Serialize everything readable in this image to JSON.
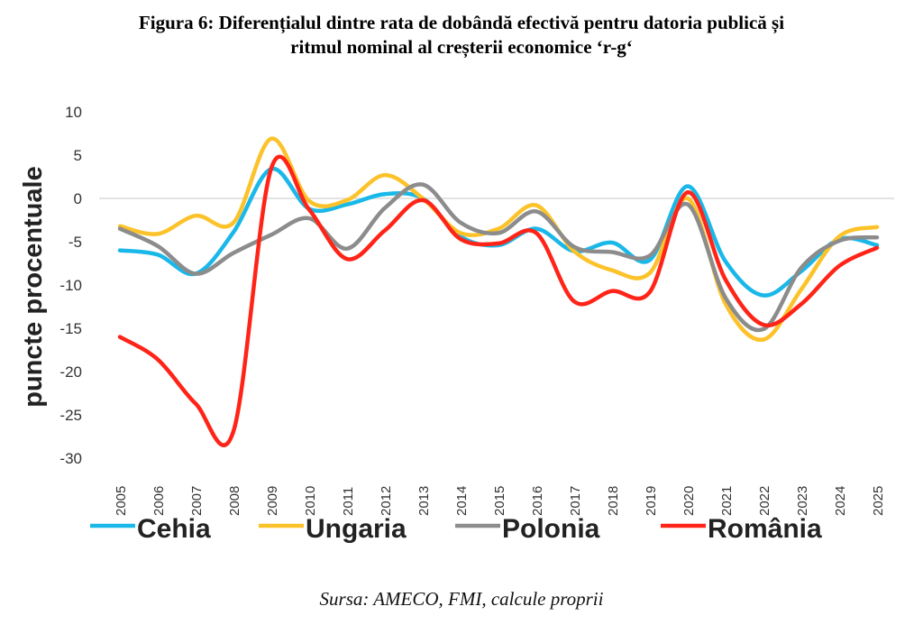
{
  "title_line1": "Figura 6: Diferențialul dintre rata de dobândă efectivă pentru datoria publică și",
  "title_line2": "ritmul nominal al creșterii economice ‘r-g‘",
  "source": "Sursa: AMECO, FMI, calcule proprii",
  "chart_data": {
    "type": "line",
    "title": "Figura 6: Diferențialul dintre rata de dobândă efectivă pentru datoria publică și ritmul nominal al creșterii economice ‘r-g‘",
    "xlabel": "",
    "ylabel": "puncte procentuale",
    "ylim": [
      -30,
      10
    ],
    "yticks": [
      "10",
      "5",
      "0",
      "-5",
      "-10",
      "-15",
      "-20",
      "-25",
      "-30"
    ],
    "ytick_values": [
      10,
      5,
      0,
      -5,
      -10,
      -15,
      -20,
      -25,
      -30
    ],
    "grid": "zero line only",
    "legend_position": "bottom",
    "categories": [
      "2005",
      "2006",
      "2007",
      "2008",
      "2009",
      "2010",
      "2011",
      "2012",
      "2013",
      "2014",
      "2015",
      "2016",
      "2017",
      "2018",
      "2019",
      "2020",
      "2021",
      "2022",
      "2023",
      "2024",
      "2025"
    ],
    "series": [
      {
        "name": "Cehia",
        "color": "#1ab8e8",
        "values": [
          -6.0,
          -6.5,
          -8.7,
          -3.9,
          3.4,
          -1.2,
          -0.7,
          0.5,
          0.0,
          -4.4,
          -5.4,
          -3.5,
          -6.1,
          -5.1,
          -7.1,
          1.4,
          -7.3,
          -11.2,
          -8.4,
          -4.7,
          -5.4
        ]
      },
      {
        "name": "Ungaria",
        "color": "#fcc22a",
        "values": [
          -3.2,
          -4.1,
          -2.0,
          -2.8,
          6.9,
          -0.3,
          -0.2,
          2.7,
          0.0,
          -4.0,
          -3.5,
          -0.8,
          -6.1,
          -8.3,
          -8.6,
          0.0,
          -12.2,
          -16.3,
          -10.5,
          -4.4,
          -3.3
        ]
      },
      {
        "name": "Polonia",
        "color": "#8c8c8c",
        "values": [
          -3.5,
          -5.5,
          -8.7,
          -6.3,
          -4.2,
          -2.3,
          -5.8,
          -1.1,
          1.6,
          -2.8,
          -4.0,
          -1.5,
          -5.6,
          -6.2,
          -6.6,
          -0.7,
          -11.5,
          -15.1,
          -8.0,
          -4.9,
          -4.5
        ]
      },
      {
        "name": "România",
        "color": "#ff2418",
        "values": [
          -16.0,
          -18.6,
          -23.7,
          -26.9,
          3.5,
          -1.3,
          -7.0,
          -3.7,
          -0.2,
          -4.7,
          -5.2,
          -4.0,
          -11.9,
          -10.7,
          -10.8,
          0.7,
          -9.4,
          -14.6,
          -12.2,
          -7.8,
          -5.7
        ]
      }
    ]
  }
}
